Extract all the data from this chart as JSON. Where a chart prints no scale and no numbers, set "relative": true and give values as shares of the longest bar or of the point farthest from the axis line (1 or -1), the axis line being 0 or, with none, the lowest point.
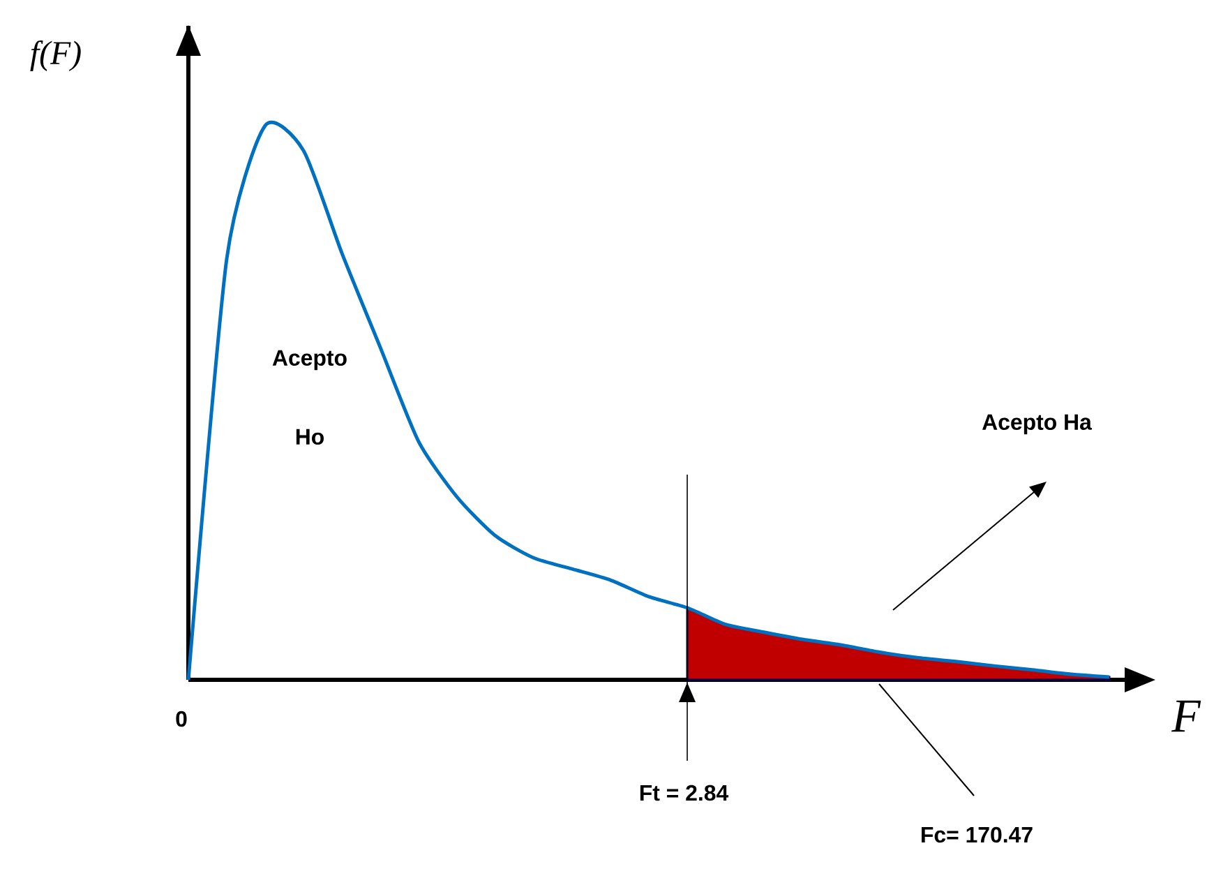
{
  "chart_data": {
    "type": "line",
    "relative": true,
    "xlabel": "F",
    "ylabel": "f(F)",
    "categories": [
      null,
      null,
      null,
      null,
      null,
      null,
      null,
      null,
      null,
      null,
      null,
      null,
      null,
      null,
      null,
      null,
      null,
      null,
      null,
      null,
      null,
      null,
      null,
      null,
      null
    ],
    "series": [
      {
        "type": "area",
        "color": "#c00000",
        "values": [
          null,
          null,
          null,
          null,
          null,
          null,
          null,
          null,
          null,
          null,
          null,
          null,
          null,
          0.13,
          0.1,
          0.086,
          0.073,
          0.063,
          0.05,
          0.04,
          0.033,
          0.025,
          0.018,
          0.01,
          0.005
        ]
      },
      {
        "color": "#0070c0",
        "values": [
          0,
          0.76,
          1,
          0.955,
          0.77,
          0.6,
          0.43,
          0.33,
          0.26,
          0.22,
          0.2,
          0.18,
          0.15,
          0.13,
          0.1,
          0.086,
          0.073,
          0.063,
          0.05,
          0.04,
          0.033,
          0.025,
          0.018,
          0.01,
          0.005
        ]
      }
    ],
    "annotations": [
      "Acepto",
      "Ho",
      "Acepto Ha",
      "0",
      "Fc= 170.47",
      "Ft = 2.84"
    ]
  }
}
